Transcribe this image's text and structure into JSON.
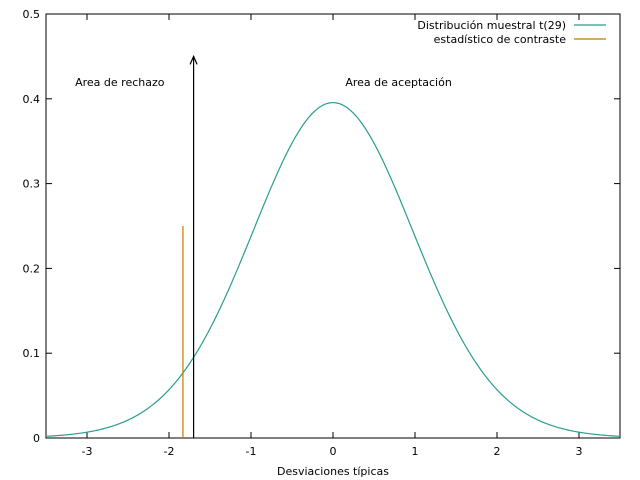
{
  "chart_data": {
    "type": "line",
    "title": "",
    "xlabel": "Desviaciones típicas",
    "ylabel": "",
    "xlim": [
      -3.5,
      3.5
    ],
    "ylim": [
      0,
      0.5
    ],
    "xticks": [
      -3,
      -2,
      -1,
      0,
      1,
      2,
      3
    ],
    "xtick_labels": [
      "-3",
      "-2",
      "-1",
      "0",
      "1",
      "2",
      "3"
    ],
    "yticks": [
      0,
      0.1,
      0.2,
      0.3,
      0.4,
      0.5
    ],
    "ytick_labels": [
      "0",
      "0.1",
      "0.2",
      "0.3",
      "0.4",
      "0.5"
    ],
    "grid": false,
    "legend_position": "top-right",
    "series": [
      {
        "name": "Distribución muestral t(29)",
        "kind": "t-density",
        "df": 29,
        "x_range": [
          -3.5,
          3.5
        ],
        "color": "#2a9d8f"
      },
      {
        "name": "estadístico de contraste",
        "kind": "vertical-line",
        "x": -1.83,
        "y_range": [
          0,
          0.25
        ],
        "color": "#c07a00"
      }
    ],
    "critical_value_arrow": {
      "x": -1.7,
      "y_range": [
        0,
        0.45
      ],
      "color": "#000000"
    },
    "annotations": [
      {
        "text": "Area de rechazo",
        "x": -2.6,
        "y": 0.42
      },
      {
        "text": "Area de aceptación",
        "x": 0.8,
        "y": 0.42
      }
    ]
  }
}
